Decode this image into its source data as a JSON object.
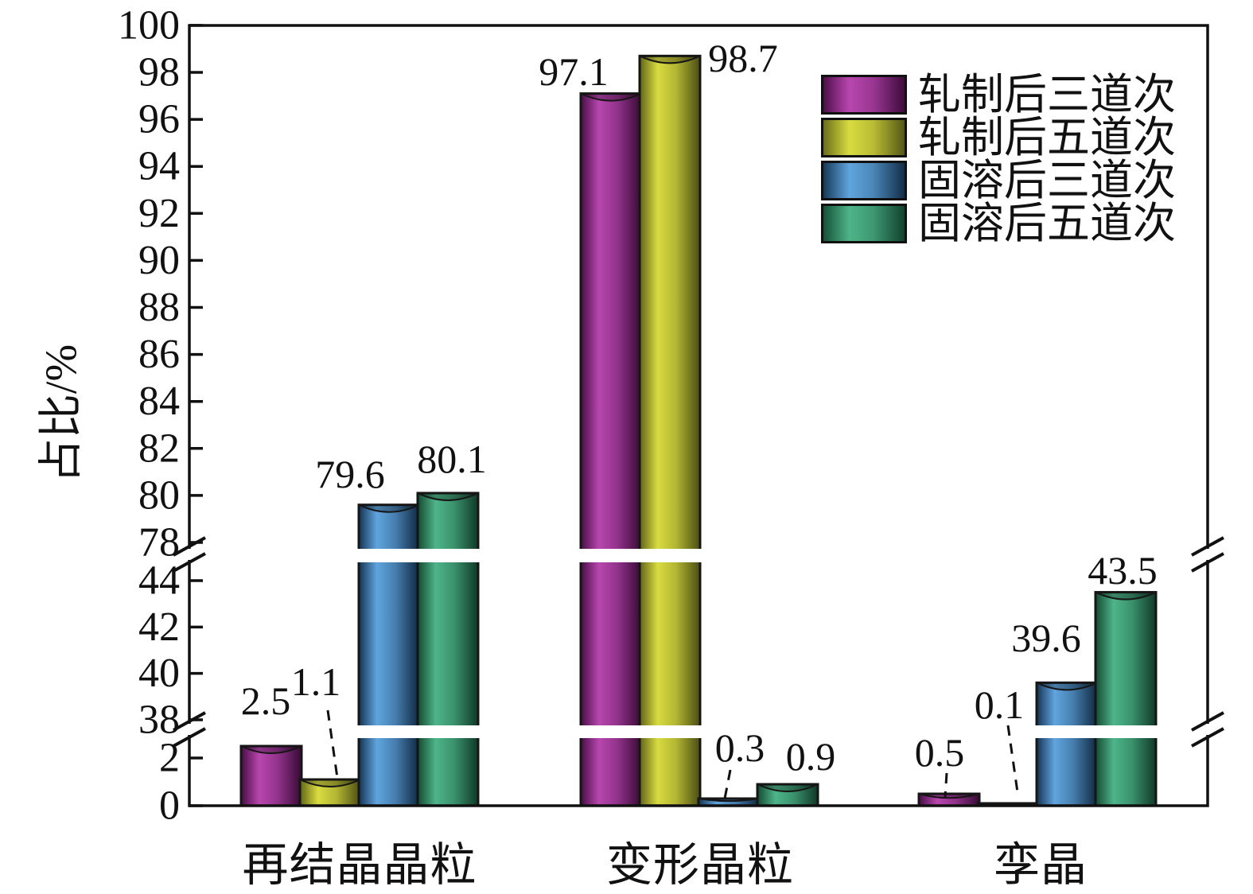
{
  "chart_data": {
    "type": "bar",
    "title": "",
    "ylabel": "占比/%",
    "categories": [
      "再结晶晶粒",
      "变形晶粒",
      "孪晶"
    ],
    "series": [
      {
        "name": "轧制后三道次",
        "color_light": "#b847af",
        "color_dark": "#4e0e4a",
        "values": [
          2.5,
          97.1,
          0.5
        ]
      },
      {
        "name": "轧制后五道次",
        "color_light": "#d9dc40",
        "color_dark": "#6b6e19",
        "values": [
          1.1,
          98.7,
          0.1
        ]
      },
      {
        "name": "固溶后三道次",
        "color_light": "#60a5de",
        "color_dark": "#16395a",
        "values": [
          79.6,
          0.3,
          39.6
        ]
      },
      {
        "name": "固溶后五道次",
        "color_light": "#4eb489",
        "color_dark": "#155238",
        "values": [
          80.1,
          0.9,
          43.5
        ]
      }
    ],
    "value_labels": [
      [
        "2.5",
        "97.1",
        "0.5"
      ],
      [
        "1.1",
        "98.7",
        "0.1"
      ],
      [
        "79.6",
        "0.3",
        "39.6"
      ],
      [
        "80.1",
        "0.9",
        "43.5"
      ]
    ],
    "y_axis": {
      "segments": [
        {
          "range": [
            0,
            2
          ],
          "ticks": [
            0,
            2
          ]
        },
        {
          "range": [
            38,
            44
          ],
          "ticks": [
            38,
            40,
            42,
            44
          ]
        },
        {
          "range": [
            78,
            100
          ],
          "ticks": [
            78,
            80,
            82,
            84,
            86,
            88,
            90,
            92,
            94,
            96,
            98,
            100
          ]
        }
      ],
      "breaks": [
        [
          2,
          38
        ],
        [
          44,
          78
        ]
      ]
    },
    "legend_position": "top-right",
    "grid": false,
    "axis_color": "#111111"
  }
}
